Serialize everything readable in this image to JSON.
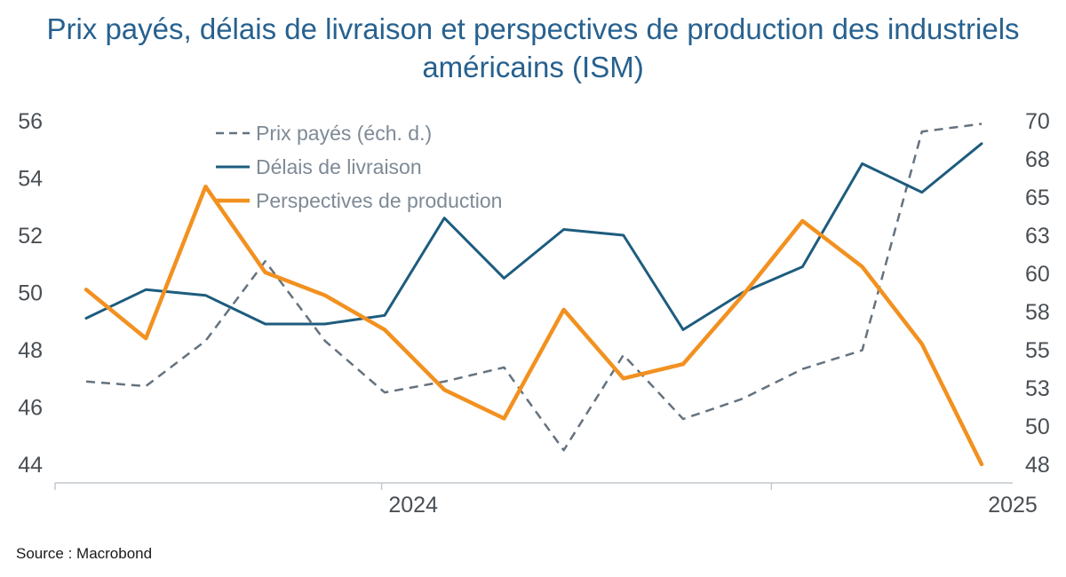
{
  "title": "Prix payés, délais de livraison et perspectives de production des industriels américains (ISM)",
  "source": "Source : Macrobond",
  "theme": {
    "title_color": "#27618f",
    "axis_line": "#c4c9cd",
    "axis_text": "#4a4f54",
    "legend_text": "#7e8a96",
    "gray_series": "#64727f",
    "blue_series": "#1d5c7e",
    "orange_series": "#f29120",
    "background": "#ffffff"
  },
  "chart_data": {
    "type": "line",
    "title": "Prix payés, délais de livraison et perspectives de production des industriels américains (ISM)",
    "x_range_note": "monthly observations, ~late 2023 through early 2025",
    "legend_position": "top-left inside plot",
    "grid": false,
    "series": [
      {
        "id": "prix_payes",
        "name": "Prix payés (éch. d.)",
        "axis": "right",
        "style": "dashed",
        "color": "#64727f",
        "width": 2.5,
        "values": [
          53.3,
          53.0,
          55.9,
          61.0,
          55.9,
          52.6,
          53.3,
          54.2,
          48.9,
          55.0,
          50.9,
          52.2,
          54.1,
          55.3,
          69.3,
          69.8
        ]
      },
      {
        "id": "delais_livraison",
        "name": "Délais de livraison",
        "axis": "left",
        "style": "solid",
        "color": "#1d5c7e",
        "width": 3,
        "values": [
          49.1,
          50.1,
          49.9,
          48.9,
          48.9,
          49.2,
          52.6,
          50.5,
          52.2,
          52.0,
          48.7,
          50.0,
          50.9,
          54.5,
          53.5,
          55.2
        ]
      },
      {
        "id": "perspectives_production",
        "name": "Perspectives de production",
        "axis": "left",
        "style": "solid",
        "color": "#f29120",
        "width": 4.5,
        "values": [
          50.1,
          48.4,
          53.7,
          50.7,
          49.9,
          48.7,
          46.6,
          45.6,
          49.4,
          47.0,
          47.5,
          49.9,
          52.5,
          50.9,
          48.2,
          44.0
        ]
      }
    ],
    "left_axis": {
      "min": 44,
      "max": 56,
      "ticks": [
        56,
        54,
        52,
        50,
        48,
        46,
        44
      ]
    },
    "right_axis": {
      "min": 48,
      "max": 70,
      "tick_labels": [
        70,
        68,
        65,
        63,
        60,
        58,
        55,
        53,
        50,
        48
      ]
    },
    "x_axis": {
      "labels": [
        {
          "text": "2024",
          "pos": 0.374
        },
        {
          "text": "2025",
          "pos": 1.0
        }
      ],
      "tick_positions": [
        0,
        0.341,
        0.748
      ]
    }
  }
}
